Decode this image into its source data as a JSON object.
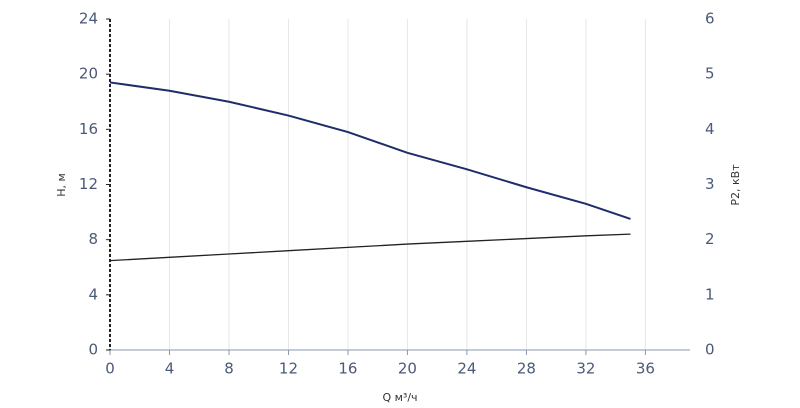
{
  "chart_data": {
    "type": "line",
    "x_label": "Q м³/ч",
    "y_label": "H, м",
    "y2_label": "P2, кВт",
    "x": [
      0,
      4,
      8,
      12,
      16,
      20,
      24,
      28,
      32,
      35
    ],
    "series": [
      {
        "color": "#1f2d6b",
        "values": [
          19.4,
          18.8,
          18.0,
          17.0,
          15.8,
          14.3,
          13.1,
          11.8,
          10.6,
          9.5
        ]
      },
      {
        "color": "#222222",
        "axis": "y2",
        "values": [
          1.62,
          1.68,
          1.74,
          1.8,
          1.86,
          1.92,
          1.97,
          2.02,
          2.07,
          2.1
        ]
      }
    ],
    "xlim": [
      0,
      39
    ],
    "xticks": [
      0,
      4,
      8,
      12,
      16,
      20,
      24,
      28,
      32,
      36
    ],
    "ylim": [
      0,
      24
    ],
    "yticks": [
      0,
      4,
      8,
      12,
      16,
      20,
      24
    ],
    "y2lim": [
      0,
      6
    ],
    "y2ticks": [
      0,
      1,
      2,
      3,
      4,
      5,
      6
    ],
    "grid": true
  }
}
